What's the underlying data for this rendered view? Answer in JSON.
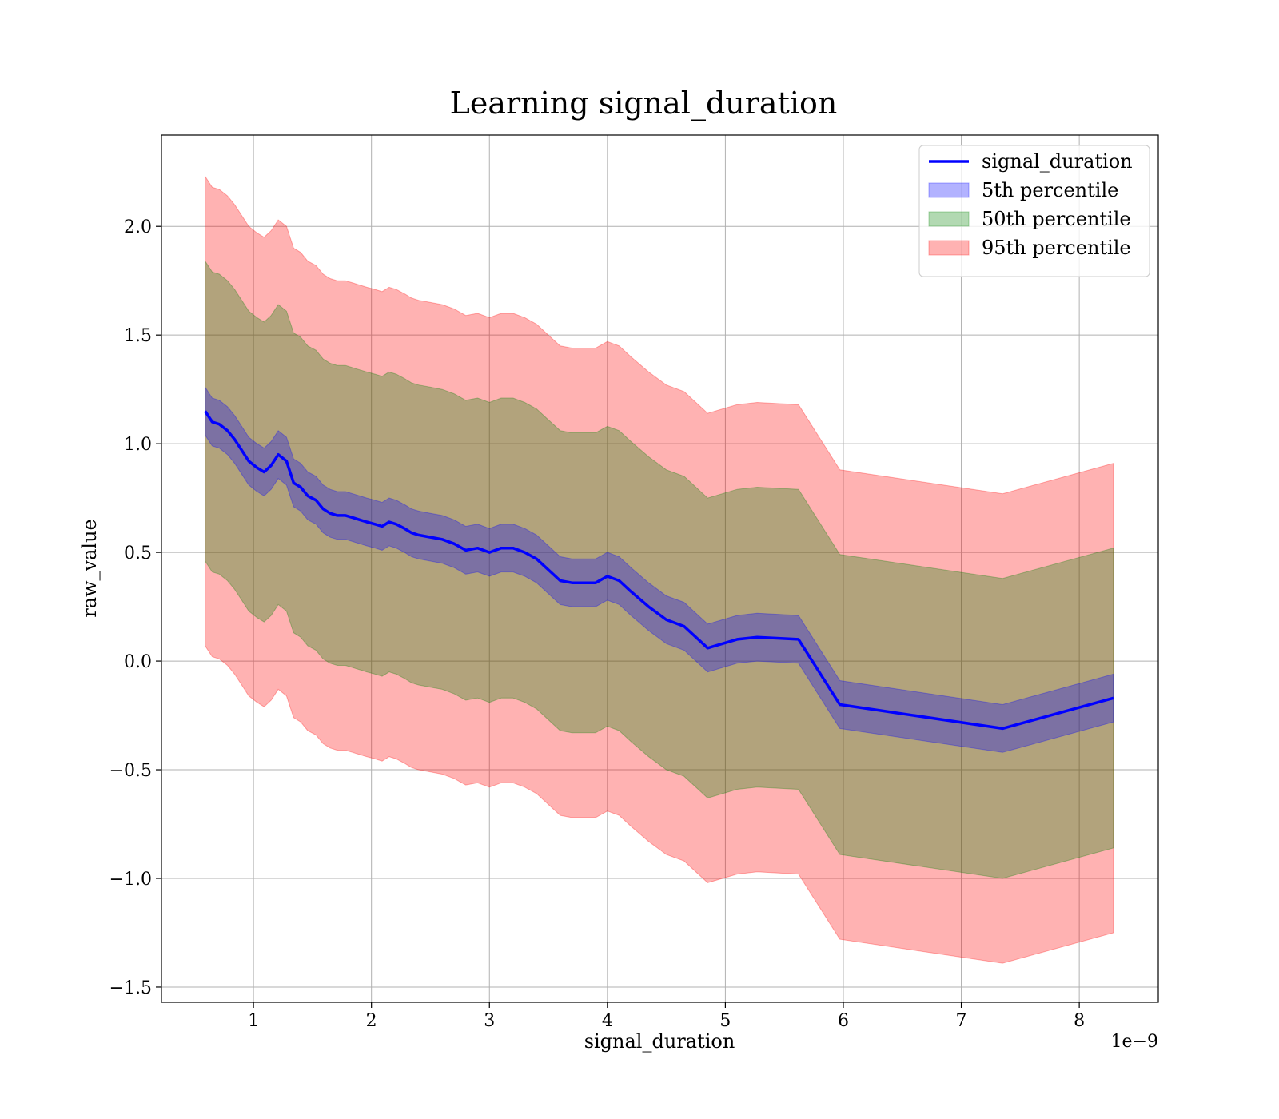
{
  "chart_data": {
    "type": "line",
    "title": "Learning signal_duration",
    "xlabel": "signal_duration",
    "ylabel": "raw_value",
    "x_offset_label": "1e−9",
    "xlim": [
      0.22,
      8.67
    ],
    "ylim": [
      -1.57,
      2.42
    ],
    "xticks": [
      1,
      2,
      3,
      4,
      5,
      6,
      7,
      8
    ],
    "yticks": [
      -1.5,
      -1.0,
      -0.5,
      0.0,
      0.5,
      1.0,
      1.5,
      2.0
    ],
    "ytick_labels": [
      "−1.5",
      "−1.0",
      "−0.5",
      "0.0",
      "0.5",
      "1.0",
      "1.5",
      "2.0"
    ],
    "grid": true,
    "legend_position": "top-right",
    "x": [
      0.59,
      0.65,
      0.71,
      0.78,
      0.84,
      0.9,
      0.96,
      1.03,
      1.09,
      1.15,
      1.21,
      1.28,
      1.34,
      1.4,
      1.46,
      1.53,
      1.59,
      1.65,
      1.71,
      1.78,
      1.84,
      1.9,
      1.96,
      2.03,
      2.09,
      2.15,
      2.21,
      2.28,
      2.34,
      2.4,
      2.5,
      2.6,
      2.7,
      2.8,
      2.9,
      3.0,
      3.1,
      3.2,
      3.3,
      3.4,
      3.5,
      3.6,
      3.7,
      3.8,
      3.9,
      4.0,
      4.1,
      4.2,
      4.35,
      4.5,
      4.65,
      4.85,
      5.1,
      5.27,
      5.62,
      5.97,
      7.35,
      8.29
    ],
    "series": [
      {
        "name": "signal_duration",
        "color": "#0000ff",
        "values": [
          1.15,
          1.1,
          1.09,
          1.06,
          1.02,
          0.97,
          0.92,
          0.89,
          0.87,
          0.9,
          0.95,
          0.92,
          0.82,
          0.8,
          0.76,
          0.74,
          0.7,
          0.68,
          0.67,
          0.67,
          0.66,
          0.65,
          0.64,
          0.63,
          0.62,
          0.64,
          0.63,
          0.61,
          0.59,
          0.58,
          0.57,
          0.56,
          0.54,
          0.51,
          0.52,
          0.5,
          0.52,
          0.52,
          0.5,
          0.47,
          0.42,
          0.37,
          0.36,
          0.36,
          0.36,
          0.39,
          0.37,
          0.32,
          0.25,
          0.19,
          0.16,
          0.06,
          0.1,
          0.11,
          0.1,
          -0.2,
          -0.31,
          -0.17
        ]
      }
    ],
    "bands": [
      {
        "name": "5th percentile",
        "color": "#0000ff",
        "half_width": 0.11
      },
      {
        "name": "50th percentile",
        "color": "#008000",
        "half_width": 0.69
      },
      {
        "name": "95th percentile",
        "color": "#ff0000",
        "half_width": 1.08
      }
    ]
  }
}
